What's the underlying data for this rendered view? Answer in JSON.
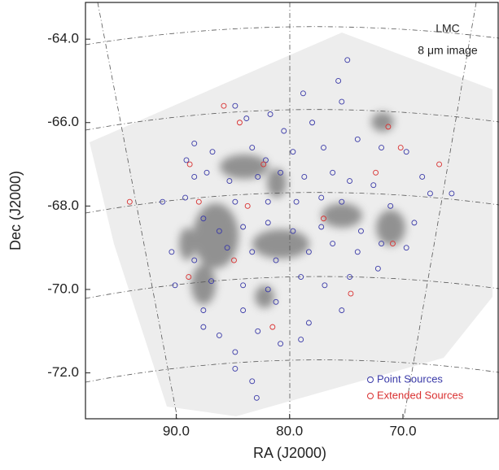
{
  "chart_data": {
    "type": "scatter",
    "annotations": [
      "LMC",
      "8 μm image"
    ],
    "xlabel": "RA (J2000)",
    "ylabel": "Dec (J2000)",
    "xlim": [
      98.0,
      61.6
    ],
    "ylim": [
      -73.1,
      -63.12
    ],
    "xticks": [
      {
        "value": 90,
        "label": "90.0"
      },
      {
        "value": 80,
        "label": "80.0"
      },
      {
        "value": 70,
        "label": "70.0"
      }
    ],
    "yticks": [
      {
        "value": -64,
        "label": "-64.0"
      },
      {
        "value": -66,
        "label": "-66.0"
      },
      {
        "value": -68,
        "label": "-68.0"
      },
      {
        "value": -70,
        "label": "-70.0"
      },
      {
        "value": -72,
        "label": "-72.0"
      }
    ],
    "legend": "lower right",
    "series": [
      {
        "name": "Point Sources",
        "color": "#3a3aa8",
        "x": [
          74.9,
          75.7,
          78.8,
          81.7,
          84.8,
          83.8,
          78.0,
          80.5,
          88.4,
          89.1,
          86.8,
          83.3,
          82.1,
          79.7,
          77.0,
          74.0,
          71.9,
          69.7,
          87.3,
          88.4,
          85.3,
          82.8,
          80.8,
          78.7,
          76.2,
          74.7,
          72.6,
          67.6,
          65.7,
          91.2,
          89.2,
          84.8,
          81.9,
          79.4,
          77.2,
          75.4,
          71.1,
          69.0,
          87.6,
          86.2,
          84.1,
          81.9,
          79.7,
          77.2,
          73.7,
          71.9,
          90.4,
          88.4,
          85.5,
          83.3,
          81.2,
          78.3,
          76.2,
          74.0,
          69.7,
          90.1,
          86.9,
          84.1,
          81.9,
          79.0,
          76.9,
          74.7,
          72.2,
          87.6,
          84.1,
          81.2,
          78.3,
          75.4,
          87.6,
          86.2,
          82.8,
          80.8,
          79.0,
          84.8,
          83.3,
          82.9,
          84.8,
          75.4,
          68.3
        ],
        "y": [
          -64.5,
          -65.0,
          -65.3,
          -65.8,
          -65.6,
          -65.9,
          -66.0,
          -66.2,
          -66.5,
          -66.9,
          -66.7,
          -66.6,
          -66.9,
          -66.7,
          -66.6,
          -66.4,
          -66.6,
          -66.7,
          -67.2,
          -67.3,
          -67.4,
          -67.3,
          -67.2,
          -67.3,
          -67.2,
          -67.4,
          -67.5,
          -67.7,
          -67.7,
          -67.9,
          -67.8,
          -67.9,
          -67.9,
          -67.9,
          -67.8,
          -67.9,
          -68.0,
          -68.4,
          -68.3,
          -68.6,
          -68.5,
          -68.4,
          -68.6,
          -68.5,
          -68.6,
          -68.9,
          -69.1,
          -69.3,
          -69.0,
          -69.1,
          -69.3,
          -69.1,
          -68.9,
          -69.1,
          -69.0,
          -69.9,
          -69.8,
          -69.9,
          -70.0,
          -69.7,
          -69.9,
          -69.7,
          -69.5,
          -70.5,
          -70.5,
          -70.3,
          -70.8,
          -70.5,
          -70.9,
          -71.1,
          -71.0,
          -71.3,
          -71.2,
          -71.9,
          -72.2,
          -72.6,
          -71.5,
          -65.5,
          -67.3
        ]
      },
      {
        "name": "Extended Sources",
        "color": "#d93030",
        "x": [
          85.8,
          84.4,
          71.3,
          88.8,
          82.3,
          70.2,
          66.8,
          72.4,
          94.1,
          88.0,
          83.7,
          77.0,
          70.9,
          88.9,
          84.9,
          74.6,
          81.5
        ],
        "y": [
          -65.6,
          -66.0,
          -66.1,
          -67.0,
          -67.0,
          -66.6,
          -67.0,
          -67.2,
          -67.9,
          -67.9,
          -68.0,
          -68.3,
          -68.9,
          -69.7,
          -69.3,
          -70.1,
          -70.9
        ]
      }
    ]
  }
}
